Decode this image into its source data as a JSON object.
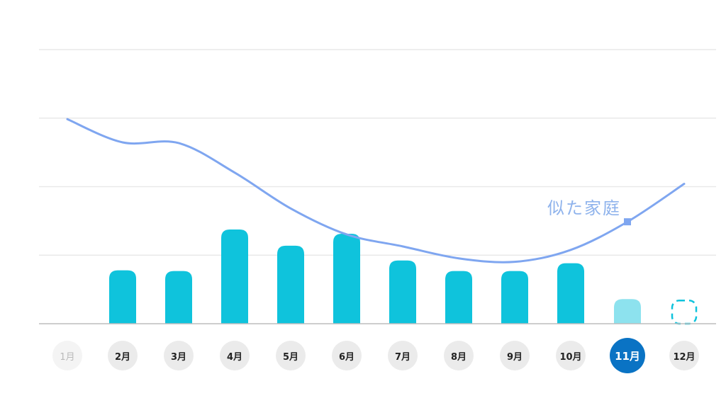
{
  "chart_data": {
    "type": "bar",
    "categories": [
      "1月",
      "2月",
      "3月",
      "4月",
      "5月",
      "6月",
      "7月",
      "8月",
      "9月",
      "10月",
      "11月",
      "12月"
    ],
    "series": [
      {
        "values": [
          0,
          76,
          75,
          134,
          111,
          128,
          90,
          75,
          75,
          86,
          35,
          33
        ],
        "style": "bar"
      },
      {
        "name": "似た家庭",
        "values": [
          291,
          258,
          257,
          215,
          164,
          127,
          110,
          93,
          88,
          105,
          145,
          199
        ],
        "style": "line"
      }
    ],
    "ylim": [
      0,
      390
    ],
    "grid": true,
    "selected_category": "11月",
    "faded_category": "1月",
    "lighter_bar_category": "11月",
    "placeholder_bar_category": "12月",
    "colors": {
      "bar": "#0fc3dc",
      "bar_light": "#8de2ee",
      "line": "#7fa6f0",
      "selected_pill": "#0a73c4",
      "grid": "#e9e9e9"
    }
  }
}
